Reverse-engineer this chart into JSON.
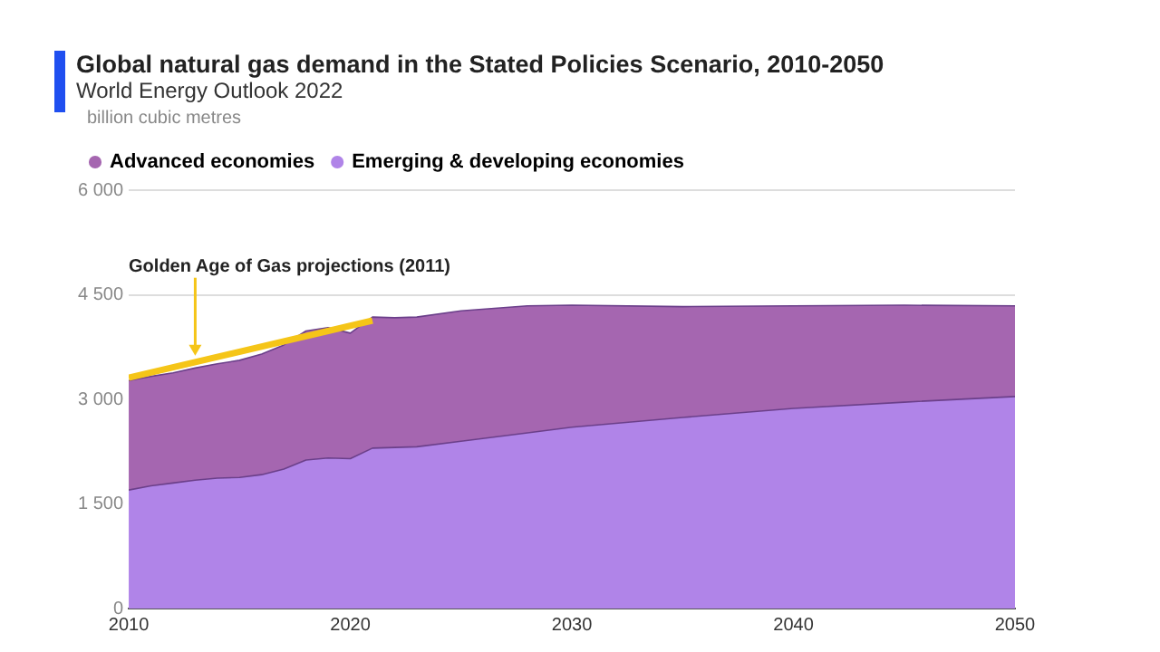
{
  "chart_data": {
    "type": "area",
    "title": "Global natural gas demand in the Stated Policies Scenario, 2010-2050",
    "subtitle": "World Energy Outlook 2022",
    "ylabel": "billion cubic metres",
    "stacked": true,
    "x": [
      2010,
      2011,
      2012,
      2013,
      2014,
      2015,
      2016,
      2017,
      2018,
      2019,
      2020,
      2021,
      2022,
      2023,
      2025,
      2028,
      2030,
      2035,
      2040,
      2045,
      2050
    ],
    "series": [
      {
        "name": "Emerging & developing economies",
        "color": "#b084e8",
        "values": [
          1700,
          1760,
          1800,
          1840,
          1870,
          1880,
          1920,
          2000,
          2130,
          2160,
          2150,
          2300,
          2310,
          2320,
          2400,
          2520,
          2600,
          2740,
          2870,
          2960,
          3040
        ]
      },
      {
        "name": "Advanced economies",
        "color": "#a566b0",
        "values": [
          1570,
          1570,
          1580,
          1610,
          1640,
          1680,
          1730,
          1780,
          1850,
          1870,
          1800,
          1880,
          1860,
          1860,
          1870,
          1820,
          1750,
          1590,
          1470,
          1390,
          1300
        ]
      },
      {
        "type": "line",
        "color": "#f5c518",
        "x": [
          2010,
          2021
        ],
        "values": [
          3310,
          4130
        ]
      }
    ],
    "xlim": [
      2010,
      2050
    ],
    "xticks": [
      2010,
      2020,
      2030,
      2040,
      2050
    ],
    "ylim": [
      0,
      6000
    ],
    "yticks": [
      0,
      {
        "value": 1500,
        "label": "1 500"
      },
      {
        "value": 3000,
        "label": "3 000"
      },
      {
        "value": 4500,
        "label": "4 500"
      },
      {
        "value": 6000,
        "label": "6 000"
      }
    ],
    "grid": "y",
    "legend": "top left",
    "marker": "none",
    "annotations": [
      {
        "text": "Golden Age of Gas projections (2011)",
        "x": 2013,
        "y": 3550
      }
    ]
  }
}
